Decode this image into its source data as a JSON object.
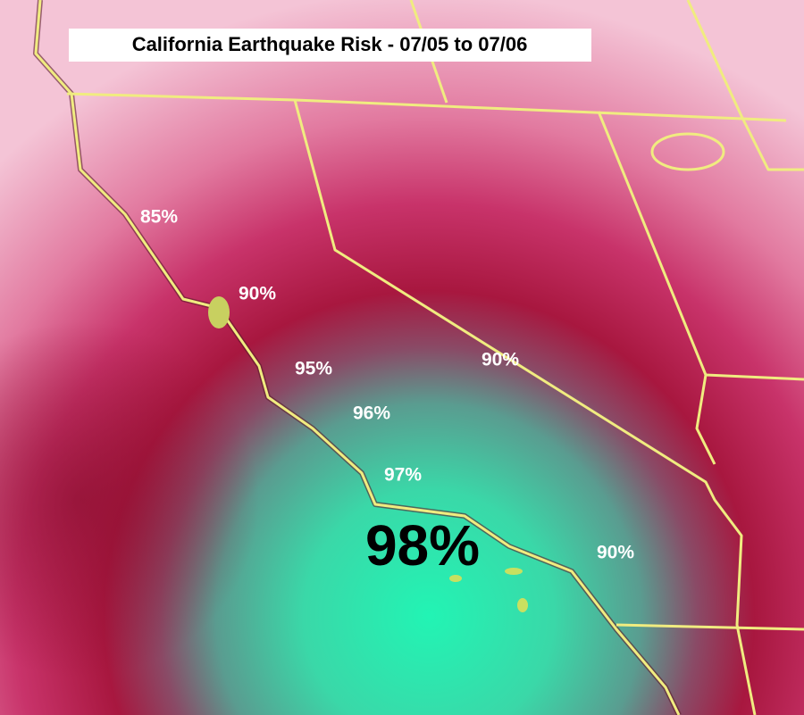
{
  "map": {
    "title": "California Earthquake Risk - 07/05 to 07/06",
    "labels": [
      "85%",
      "90%",
      "95%",
      "96%",
      "97%",
      "98%",
      "90%",
      "90%"
    ]
  }
}
